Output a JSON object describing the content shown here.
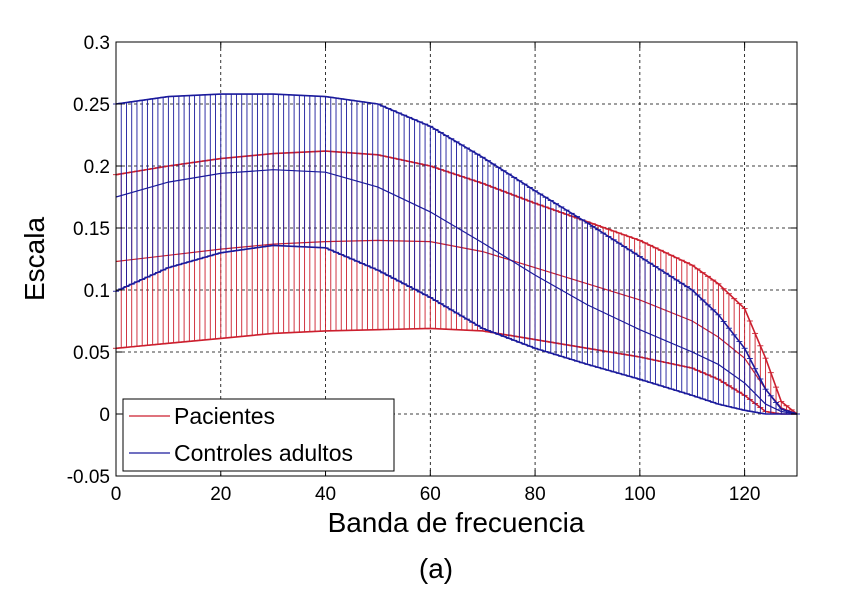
{
  "chart_data": {
    "type": "line",
    "xlabel": "Banda de frecuencia",
    "ylabel": "Escala",
    "caption": "(a)",
    "xlim": [
      0,
      130
    ],
    "ylim": [
      -0.05,
      0.3
    ],
    "xticks": [
      0,
      20,
      40,
      60,
      80,
      100,
      120
    ],
    "xtick_labels": [
      "0",
      "20",
      "40",
      "60",
      "80",
      "100",
      "120"
    ],
    "yticks": [
      -0.05,
      0,
      0.05,
      0.1,
      0.15,
      0.2,
      0.25,
      0.3
    ],
    "ytick_labels": [
      "-0.05",
      "0",
      "0.05",
      "0.1",
      "0.15",
      "0.2",
      "0.25",
      "0.3"
    ],
    "grid": true,
    "legend_position": "bottom-left",
    "series": [
      {
        "name": "Pacientes",
        "color": "#cc1f2e",
        "x": [
          0,
          10,
          20,
          30,
          40,
          50,
          60,
          70,
          80,
          90,
          100,
          110,
          115,
          120,
          124,
          127,
          130
        ],
        "mean": [
          0.123,
          0.128,
          0.133,
          0.137,
          0.139,
          0.14,
          0.139,
          0.131,
          0.118,
          0.105,
          0.092,
          0.075,
          0.062,
          0.045,
          0.02,
          0.005,
          0.0
        ],
        "upper": [
          0.193,
          0.2,
          0.206,
          0.21,
          0.212,
          0.209,
          0.2,
          0.186,
          0.17,
          0.155,
          0.14,
          0.12,
          0.105,
          0.085,
          0.045,
          0.01,
          0.0
        ],
        "lower": [
          0.053,
          0.057,
          0.061,
          0.065,
          0.067,
          0.068,
          0.069,
          0.067,
          0.06,
          0.053,
          0.046,
          0.037,
          0.028,
          0.015,
          0.002,
          0.0,
          0.0
        ]
      },
      {
        "name": "Controles adultos",
        "color": "#1a1a9c",
        "x": [
          0,
          10,
          20,
          30,
          40,
          50,
          60,
          70,
          80,
          90,
          100,
          110,
          115,
          120,
          124,
          127,
          130
        ],
        "mean": [
          0.175,
          0.187,
          0.194,
          0.197,
          0.195,
          0.183,
          0.163,
          0.138,
          0.112,
          0.088,
          0.068,
          0.05,
          0.04,
          0.025,
          0.008,
          0.002,
          0.0
        ],
        "upper": [
          0.25,
          0.256,
          0.258,
          0.258,
          0.256,
          0.25,
          0.232,
          0.207,
          0.18,
          0.154,
          0.127,
          0.1,
          0.08,
          0.053,
          0.02,
          0.004,
          0.0
        ],
        "lower": [
          0.099,
          0.118,
          0.13,
          0.136,
          0.134,
          0.116,
          0.094,
          0.069,
          0.053,
          0.04,
          0.028,
          0.015,
          0.008,
          0.003,
          0.0,
          0.0,
          0.0
        ]
      }
    ]
  }
}
